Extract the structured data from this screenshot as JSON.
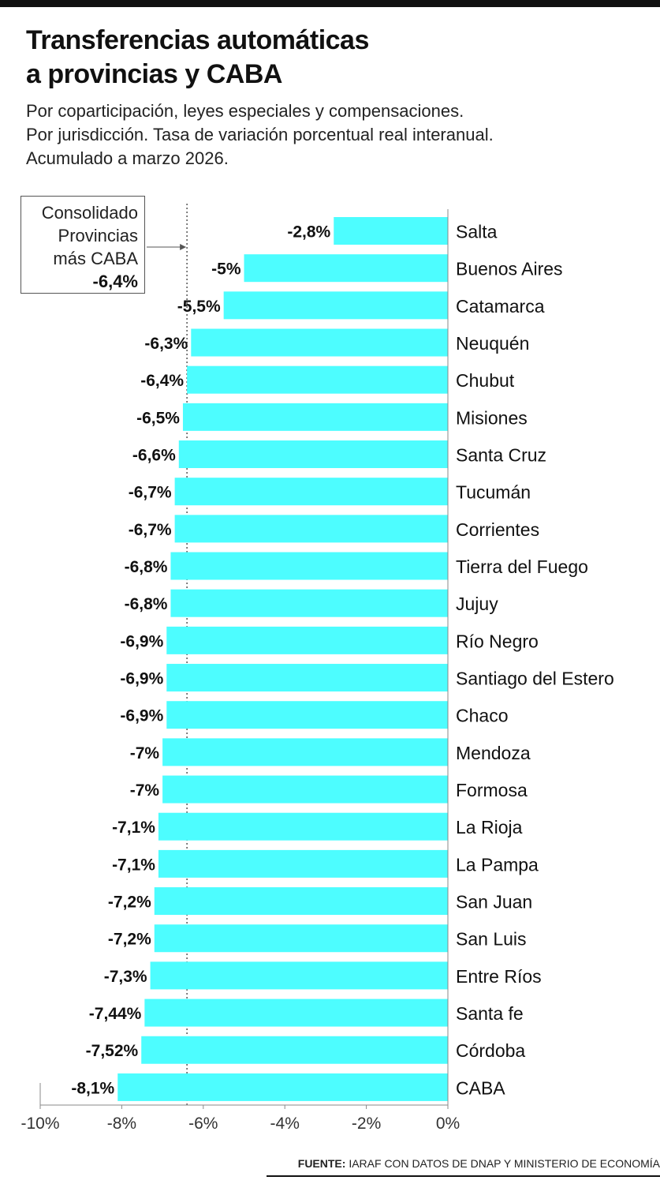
{
  "title_lines": [
    "Transferencias automáticas",
    "a provincias y CABA"
  ],
  "subtitle_lines": [
    "Por coparticipación, leyes especiales y compensaciones.",
    "Por jurisdicción. Tasa de variación porcentual real interanual.",
    "Acumulado a marzo 2026."
  ],
  "annotation": {
    "lines": [
      "Consolidado",
      "Provincias",
      "más CABA"
    ],
    "value_label": "-6,4%"
  },
  "source": {
    "prefix": "FUENTE:",
    "text": "IARAF CON DATOS DE DNAP Y MINISTERIO DE ECONOMÍA"
  },
  "colors": {
    "bar": "#4dfdff",
    "reference_line": "#555555",
    "axis": "#888888"
  },
  "chart_data": {
    "type": "bar",
    "orientation": "horizontal",
    "categories": [
      "Salta",
      "Buenos Aires",
      "Catamarca",
      "Neuquén",
      "Chubut",
      "Misiones",
      "Santa Cruz",
      "Tucumán",
      "Corrientes",
      "Tierra del Fuego",
      "Jujuy",
      "Río Negro",
      "Santiago del Estero",
      "Chaco",
      "Mendoza",
      "Formosa",
      "La Rioja",
      "La Pampa",
      "San Juan",
      "San Luis",
      "Entre Ríos",
      "Santa fe",
      "Córdoba",
      "CABA"
    ],
    "values": [
      -2.8,
      -5,
      -5.5,
      -6.3,
      -6.4,
      -6.5,
      -6.6,
      -6.7,
      -6.7,
      -6.8,
      -6.8,
      -6.9,
      -6.9,
      -6.9,
      -7,
      -7,
      -7.1,
      -7.1,
      -7.2,
      -7.2,
      -7.3,
      -7.44,
      -7.52,
      -8.1
    ],
    "value_labels": [
      "-2,8%",
      "-5%",
      "-5,5%",
      "-6,3%",
      "-6,4%",
      "-6,5%",
      "-6,6%",
      "-6,7%",
      "-6,7%",
      "-6,8%",
      "-6,8%",
      "-6,9%",
      "-6,9%",
      "-6,9%",
      "-7%",
      "-7%",
      "-7,1%",
      "-7,1%",
      "-7,2%",
      "-7,2%",
      "-7,3%",
      "-7,44%",
      "-7,52%",
      "-8,1%"
    ],
    "xlim": [
      -10,
      0
    ],
    "xticks": [
      -10,
      -8,
      -6,
      -4,
      -2,
      0
    ],
    "xtick_labels": [
      "-10%",
      "-8%",
      "-6%",
      "-4%",
      "-2%",
      "0%"
    ],
    "reference_value": -6.4,
    "grid": false,
    "legend": "none"
  }
}
